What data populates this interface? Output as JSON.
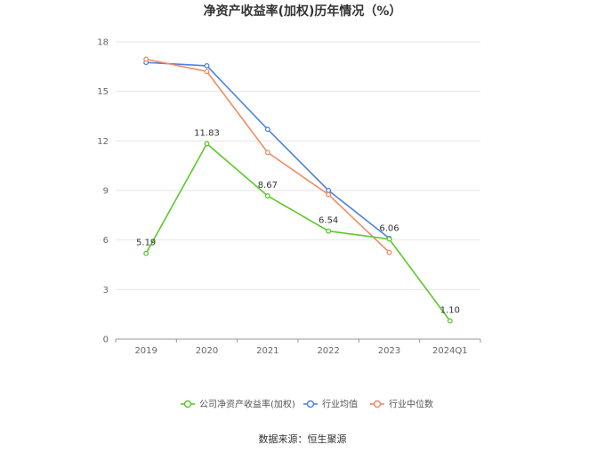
{
  "chart_data": {
    "type": "line",
    "title": "净资产收益率(加权)历年情况（%）",
    "xlabel": "",
    "ylabel": "",
    "categories": [
      "2019",
      "2020",
      "2021",
      "2022",
      "2023",
      "2024Q1"
    ],
    "ylim": [
      0,
      18
    ],
    "yticks": [
      0,
      3,
      6,
      9,
      12,
      15,
      18
    ],
    "grid": true,
    "legend_position": "bottom",
    "series": [
      {
        "name": "公司净资产收益率(加权)",
        "color": "#5ec72c",
        "values": [
          5.19,
          11.83,
          8.67,
          6.54,
          6.06,
          1.1
        ],
        "labels": [
          "5.19",
          "11.83",
          "8.67",
          "6.54",
          "6.06",
          "1.10"
        ]
      },
      {
        "name": "行业均值",
        "color": "#4e82e0",
        "values": [
          16.75,
          16.55,
          12.7,
          9.0,
          6.1,
          null
        ]
      },
      {
        "name": "行业中位数",
        "color": "#f08a63",
        "values": [
          16.95,
          16.2,
          11.3,
          8.75,
          5.25,
          null
        ]
      }
    ],
    "source": "数据来源：恒生聚源"
  }
}
